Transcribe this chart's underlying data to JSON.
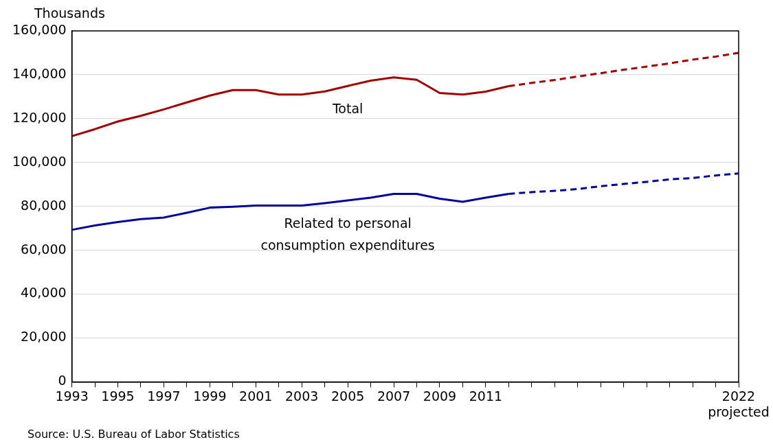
{
  "chart_data": {
    "type": "line",
    "ylabel": "Thousands",
    "xlim": [
      1993,
      2022
    ],
    "xticks": [
      {
        "value": 1993,
        "label": "1993"
      },
      {
        "value": 1994,
        "label": null
      },
      {
        "value": 1995,
        "label": "1995"
      },
      {
        "value": 1996,
        "label": null
      },
      {
        "value": 1997,
        "label": "1997"
      },
      {
        "value": 1998,
        "label": null
      },
      {
        "value": 1999,
        "label": "1999"
      },
      {
        "value": 2000,
        "label": null
      },
      {
        "value": 2001,
        "label": "2001"
      },
      {
        "value": 2002,
        "label": null
      },
      {
        "value": 2003,
        "label": "2003"
      },
      {
        "value": 2004,
        "label": null
      },
      {
        "value": 2005,
        "label": "2005"
      },
      {
        "value": 2006,
        "label": null
      },
      {
        "value": 2007,
        "label": "2007"
      },
      {
        "value": 2008,
        "label": null
      },
      {
        "value": 2009,
        "label": "2009"
      },
      {
        "value": 2010,
        "label": null
      },
      {
        "value": 2011,
        "label": "2011"
      },
      {
        "value": 2012,
        "label": null
      },
      {
        "value": 2013,
        "label": null
      },
      {
        "value": 2014,
        "label": null
      },
      {
        "value": 2015,
        "label": null
      },
      {
        "value": 2016,
        "label": null
      },
      {
        "value": 2017,
        "label": null
      },
      {
        "value": 2018,
        "label": null
      },
      {
        "value": 2019,
        "label": null
      },
      {
        "value": 2020,
        "label": null
      },
      {
        "value": 2021,
        "label": null
      },
      {
        "value": 2022,
        "label": "2022\nprojected"
      }
    ],
    "ylim": [
      0,
      160000
    ],
    "yticks": [
      {
        "value": 0,
        "label": "0"
      },
      {
        "value": 20000,
        "label": "20,000"
      },
      {
        "value": 40000,
        "label": "40,000"
      },
      {
        "value": 60000,
        "label": "60,000"
      },
      {
        "value": 80000,
        "label": "80,000"
      },
      {
        "value": 100000,
        "label": "100,000"
      },
      {
        "value": 120000,
        "label": "120,000"
      },
      {
        "value": 140000,
        "label": "140,000"
      },
      {
        "value": 160000,
        "label": "160,000"
      }
    ],
    "grid": "y",
    "legend": false,
    "marker": "none",
    "series": [
      {
        "name": "Total",
        "color": "#a00000",
        "line_style": "solid",
        "x": [
          1993,
          1994,
          1995,
          1996,
          1997,
          1998,
          1999,
          2000,
          2001,
          2002,
          2003,
          2004,
          2005,
          2006,
          2007,
          2008,
          2009,
          2010,
          2011,
          2012
        ],
        "values": [
          112000,
          115200,
          118700,
          121300,
          124200,
          127400,
          130500,
          133000,
          133000,
          131000,
          131000,
          132400,
          134900,
          137300,
          138800,
          137700,
          131700,
          131000,
          132300,
          134800
        ]
      },
      {
        "color": "#a00000",
        "line_style": "dashed",
        "x": [
          2012,
          2013,
          2014,
          2015,
          2016,
          2017,
          2018,
          2019,
          2020,
          2021,
          2022
        ],
        "values": [
          134800,
          136300,
          137600,
          139200,
          140700,
          142300,
          143700,
          145200,
          146900,
          148300,
          150000
        ]
      },
      {
        "name": "Related to personal consumption expenditures",
        "color": "#0000a0",
        "line_style": "solid",
        "x": [
          1993,
          1994,
          1995,
          1996,
          1997,
          1998,
          1999,
          2000,
          2001,
          2002,
          2003,
          2004,
          2005,
          2006,
          2007,
          2008,
          2009,
          2010,
          2011,
          2012
        ],
        "values": [
          69300,
          71300,
          72900,
          74200,
          74900,
          77100,
          79400,
          79800,
          80400,
          80400,
          80400,
          81500,
          82700,
          84000,
          85700,
          85700,
          83500,
          82100,
          84000,
          85700
        ]
      },
      {
        "color": "#0000a0",
        "line_style": "dashed",
        "x": [
          2012,
          2013,
          2014,
          2015,
          2016,
          2017,
          2018,
          2019,
          2020,
          2021,
          2022
        ],
        "values": [
          85700,
          86500,
          87100,
          87900,
          89200,
          90200,
          91200,
          92300,
          92900,
          94100,
          95000
        ]
      }
    ],
    "annotations": [
      "Source: U.S. Bureau of Labor Statistics"
    ]
  }
}
